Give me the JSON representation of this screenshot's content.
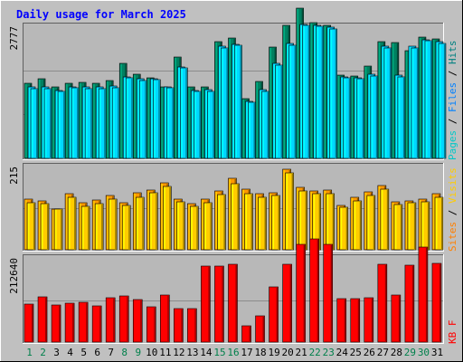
{
  "page": {
    "title": "Daily usage for March 2025",
    "background": "#C0C0C0",
    "panel_fill": "#B8B8B8",
    "title_color": "#0000FF"
  },
  "legends": {
    "top": [
      {
        "text": "Pages",
        "color": "#00C8C8"
      },
      {
        "text": " / ",
        "color": "#000000"
      },
      {
        "text": "Files",
        "color": "#0080FF"
      },
      {
        "text": " / ",
        "color": "#000000"
      },
      {
        "text": "Hits",
        "color": "#008080"
      }
    ],
    "middle": [
      {
        "text": "Sites",
        "color": "#FF8000"
      },
      {
        "text": " / ",
        "color": "#000000"
      },
      {
        "text": "Visits",
        "color": "#FFCC00"
      }
    ],
    "bottom": [
      {
        "text": "KB",
        "color": "#FF0000"
      },
      {
        "text": "F",
        "color": "#FF0000"
      }
    ]
  },
  "chart_data": {
    "type": "bar",
    "title": "Daily usage for March 2025",
    "categories": [
      "1",
      "2",
      "3",
      "4",
      "5",
      "6",
      "7",
      "8",
      "9",
      "10",
      "11",
      "12",
      "13",
      "14",
      "15",
      "16",
      "17",
      "18",
      "19",
      "20",
      "21",
      "22",
      "23",
      "24",
      "25",
      "26",
      "27",
      "28",
      "29",
      "30",
      "31"
    ],
    "weekend_days": [
      "1",
      "2",
      "8",
      "9",
      "15",
      "16",
      "22",
      "23",
      "29",
      "30"
    ],
    "colors": {
      "day_weekday": "#000000",
      "day_weekend": "#00804B"
    },
    "panels": [
      {
        "name": "top",
        "ymax_label": "2777",
        "ymax": 2777,
        "series": [
          {
            "name": "Hits",
            "color": "#008060",
            "values": [
              1570,
              1670,
              1510,
              1580,
              1600,
              1580,
              1630,
              2000,
              1760,
              1700,
              1510,
              2130,
              1510,
              1510,
              2460,
              2530,
              1250,
              1620,
              2340,
              2790,
              3150,
              2850,
              2800,
              1750,
              1740,
              1940,
              2450,
              2440,
              2270,
              2550,
              2520
            ]
          },
          {
            "name": "Files",
            "color": "#00C8FF",
            "values": [
              1500,
              1500,
              1430,
              1510,
              1500,
              1500,
              1520,
              1720,
              1670,
              1680,
              1510,
              1920,
              1430,
              1440,
              2360,
              2400,
              1200,
              1440,
              1990,
              2420,
              2820,
              2800,
              2750,
              1720,
              1700,
              1770,
              2350,
              1750,
              2350,
              2500,
              2450
            ]
          },
          {
            "name": "Pages",
            "color": "#00D8FF",
            "values": [
              1470,
              1470,
              1400,
              1480,
              1470,
              1470,
              1490,
              1700,
              1640,
              1650,
              1480,
              1900,
              1400,
              1410,
              2330,
              2380,
              1180,
              1410,
              1960,
              2380,
              2800,
              2770,
              2720,
              1690,
              1670,
              1740,
              2320,
              1720,
              2320,
              2470,
              2420
            ]
          }
        ]
      },
      {
        "name": "middle",
        "ymax_label": "215",
        "ymax": 215,
        "series": [
          {
            "name": "Sites",
            "color": "#FF9900",
            "values": [
              131,
              127,
              106,
              146,
              122,
              128,
              141,
              121,
              147,
              154,
              173,
              130,
              120,
              132,
              153,
              185,
              157,
              146,
              148,
              207,
              161,
              153,
              154,
              115,
              135,
              150,
              166,
              124,
              127,
              131,
              146
            ]
          },
          {
            "name": "Visits",
            "color": "#FFCC00",
            "values": [
              121,
              120,
              104,
              136,
              113,
              119,
              131,
              114,
              136,
              147,
              163,
              123,
              112,
              122,
              142,
              171,
              146,
              136,
              140,
              198,
              152,
              144,
              146,
              111,
              126,
              140,
              156,
              117,
              121,
              124,
              135
            ]
          }
        ]
      },
      {
        "name": "bottom",
        "ymax_label": "212640",
        "ymax": 212640,
        "series": [
          {
            "name": "KB",
            "color": "#FF0000",
            "values": [
              95000,
              115000,
              94000,
              99000,
              101000,
              91000,
              111000,
              116000,
              108000,
              89000,
              118000,
              85000,
              85000,
              193000,
              193000,
              197000,
              42000,
              66000,
              140000,
              196000,
              248000,
              260000,
              247000,
              110000,
              110000,
              113000,
              196000,
              118000,
              195000,
              241000,
              198000
            ]
          }
        ]
      }
    ]
  }
}
